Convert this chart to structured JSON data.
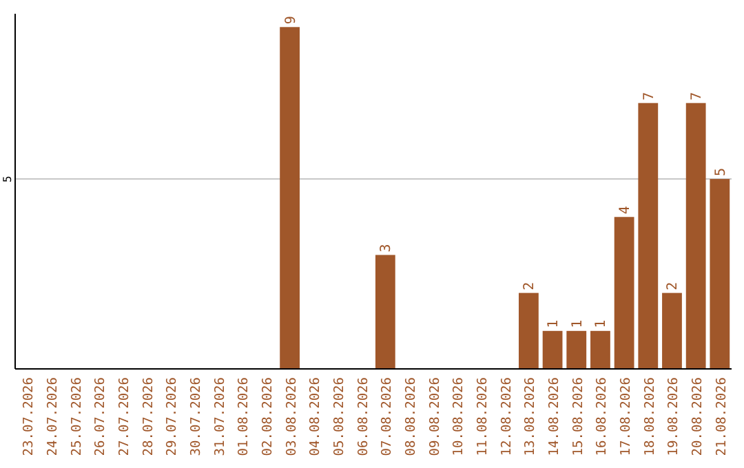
{
  "chart_data": {
    "type": "bar",
    "categories": [
      "23.07.2026",
      "24.07.2026",
      "25.07.2026",
      "26.07.2026",
      "27.07.2026",
      "28.07.2026",
      "29.07.2026",
      "30.07.2026",
      "31.07.2026",
      "01.08.2026",
      "02.08.2026",
      "03.08.2026",
      "04.08.2026",
      "05.08.2026",
      "06.08.2026",
      "07.08.2026",
      "08.08.2026",
      "09.08.2026",
      "10.08.2026",
      "11.08.2026",
      "12.08.2026",
      "13.08.2026",
      "14.08.2026",
      "15.08.2026",
      "16.08.2026",
      "17.08.2026",
      "18.08.2026",
      "19.08.2026",
      "20.08.2026",
      "21.08.2026"
    ],
    "values": [
      null,
      null,
      null,
      null,
      null,
      null,
      null,
      null,
      null,
      null,
      null,
      9,
      null,
      null,
      null,
      3,
      null,
      null,
      null,
      null,
      null,
      2,
      1,
      1,
      1,
      4,
      7,
      2,
      7,
      5
    ],
    "color": "#a0572a",
    "ylim": [
      0,
      9.35
    ],
    "yticks": [
      5
    ],
    "grid": "y",
    "data_labels": true
  }
}
